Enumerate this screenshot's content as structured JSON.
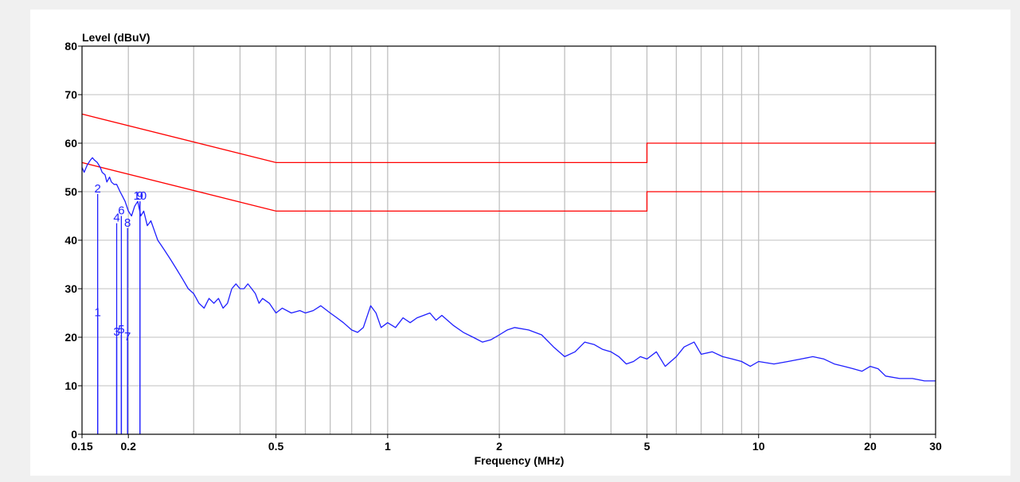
{
  "chart_data": {
    "type": "line",
    "ylabel": "Level (dBuV)",
    "xlabel": "Frequency (MHz)",
    "x_scale": "log",
    "xlim": [
      0.15,
      30
    ],
    "ylim": [
      0,
      80
    ],
    "grid": true,
    "y_ticks": [
      0,
      10,
      20,
      30,
      40,
      50,
      60,
      70,
      80
    ],
    "x_ticks": [
      {
        "value": 0.15,
        "label": "0.15"
      },
      {
        "value": 0.2,
        "label": "0.2"
      },
      {
        "value": 0.5,
        "label": "0.5"
      },
      {
        "value": 1,
        "label": "1"
      },
      {
        "value": 2,
        "label": "2"
      },
      {
        "value": 5,
        "label": "5"
      },
      {
        "value": 10,
        "label": "10"
      },
      {
        "value": 20,
        "label": "20"
      },
      {
        "value": 30,
        "label": "30"
      }
    ],
    "x_minor_gridlines": [
      0.3,
      0.4,
      0.6,
      0.7,
      0.8,
      0.9,
      3,
      4,
      6,
      7,
      8,
      9
    ],
    "colors": {
      "measurement": "#1f1fff",
      "limit": "#ff0000",
      "grid": "#c0c0c0"
    },
    "limit_lines": [
      {
        "points": [
          [
            0.15,
            66
          ],
          [
            0.5,
            56
          ],
          [
            5,
            56
          ],
          [
            5,
            60
          ],
          [
            30,
            60
          ]
        ]
      },
      {
        "points": [
          [
            0.15,
            56
          ],
          [
            0.5,
            46
          ],
          [
            5,
            46
          ],
          [
            5,
            50
          ],
          [
            30,
            50
          ]
        ]
      }
    ],
    "markers": [
      {
        "label": "1",
        "x": 0.1653,
        "value": 24
      },
      {
        "label": "2",
        "x": 0.1653,
        "value": 49.5
      },
      {
        "label": "3",
        "x": 0.186,
        "value": 20
      },
      {
        "label": "4",
        "x": 0.186,
        "value": 43.5
      },
      {
        "label": "5",
        "x": 0.1915,
        "value": 20.5
      },
      {
        "label": "6",
        "x": 0.1915,
        "value": 45
      },
      {
        "label": "7",
        "x": 0.199,
        "value": 19
      },
      {
        "label": "8",
        "x": 0.199,
        "value": 42.5
      },
      {
        "label": "9",
        "x": 0.215,
        "value": 48
      },
      {
        "label": "10",
        "x": 0.215,
        "value": 48
      }
    ],
    "series": [
      {
        "x": [
          0.15,
          0.152,
          0.155,
          0.158,
          0.16,
          0.162,
          0.165,
          0.168,
          0.17,
          0.173,
          0.175,
          0.178,
          0.18,
          0.183,
          0.186,
          0.19,
          0.193,
          0.196,
          0.2,
          0.204,
          0.208,
          0.212,
          0.216,
          0.22,
          0.225,
          0.23,
          0.235,
          0.24,
          0.245,
          0.25,
          0.26,
          0.27,
          0.28,
          0.29,
          0.3,
          0.31,
          0.32,
          0.33,
          0.34,
          0.35,
          0.36,
          0.37,
          0.38,
          0.39,
          0.4,
          0.41,
          0.42,
          0.43,
          0.44,
          0.45,
          0.46,
          0.48,
          0.5,
          0.52,
          0.55,
          0.58,
          0.6,
          0.63,
          0.66,
          0.7,
          0.73,
          0.76,
          0.8,
          0.83,
          0.86,
          0.9,
          0.93,
          0.96,
          1.0,
          1.05,
          1.1,
          1.15,
          1.2,
          1.25,
          1.3,
          1.35,
          1.4,
          1.5,
          1.6,
          1.7,
          1.8,
          1.9,
          2.0,
          2.1,
          2.2,
          2.4,
          2.6,
          2.8,
          3.0,
          3.2,
          3.4,
          3.6,
          3.8,
          4.0,
          4.2,
          4.4,
          4.6,
          4.8,
          5.0,
          5.3,
          5.6,
          6.0,
          6.3,
          6.7,
          7.0,
          7.5,
          8.0,
          8.5,
          9.0,
          9.5,
          10.0,
          11.0,
          12.0,
          13.0,
          14.0,
          15.0,
          16.0,
          17.0,
          18.0,
          19.0,
          20.0,
          21.0,
          22.0,
          24.0,
          26.0,
          28.0,
          30.0
        ],
        "values": [
          55,
          54,
          55.5,
          56.5,
          57,
          56.5,
          56,
          55,
          54,
          53.5,
          52,
          53,
          52,
          51.5,
          51.5,
          50,
          49,
          48,
          46,
          45,
          47,
          48,
          45,
          46,
          43,
          44,
          42,
          40,
          39,
          38,
          36,
          34,
          32,
          30,
          29,
          27,
          26,
          28,
          27,
          28,
          26,
          27,
          30,
          31,
          30,
          30,
          31,
          30,
          29,
          27,
          28,
          27,
          25,
          26,
          25,
          25.5,
          25,
          25.5,
          26.5,
          25,
          24,
          23,
          21.5,
          21,
          22,
          26.5,
          25,
          22,
          23,
          22,
          24,
          23,
          24,
          24.5,
          25,
          23.5,
          24.5,
          22.5,
          21,
          20,
          19,
          19.5,
          20.5,
          21.5,
          22,
          21.5,
          20.5,
          18,
          16,
          17,
          19,
          18.5,
          17.5,
          17,
          16,
          14.5,
          15,
          16,
          15.5,
          17,
          14,
          16,
          18,
          19,
          16.5,
          17,
          16,
          15.5,
          15,
          14,
          15,
          14.5,
          15,
          15.5,
          16,
          15.5,
          14.5,
          14,
          13.5,
          13,
          14,
          13.5,
          12,
          11.5,
          11.5,
          11,
          11
        ]
      }
    ]
  }
}
